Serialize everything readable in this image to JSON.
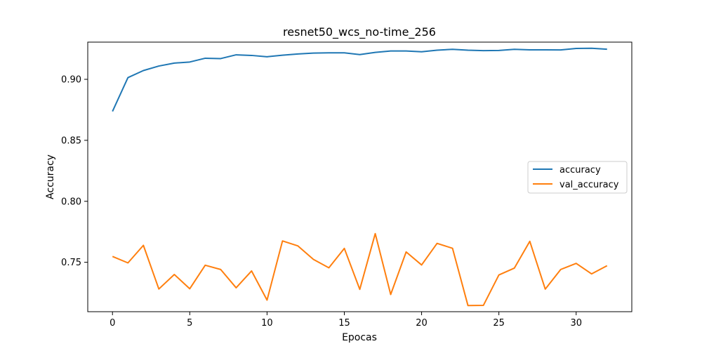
{
  "chart_data": {
    "type": "line",
    "title": "resnet50_wcs_no-time_256",
    "xlabel": "Epocas",
    "ylabel": "Accuracy",
    "xlim": [
      -1.6,
      33.6
    ],
    "ylim": [
      0.7095,
      0.9305
    ],
    "xticks": [
      0,
      5,
      10,
      15,
      20,
      25,
      30
    ],
    "yticks": [
      0.75,
      0.8,
      0.85,
      0.9
    ],
    "ytick_labels": [
      "0.75",
      "0.80",
      "0.85",
      "0.90"
    ],
    "grid": false,
    "legend_position": "center-right",
    "x": [
      0,
      1,
      2,
      3,
      4,
      5,
      6,
      7,
      8,
      9,
      10,
      11,
      12,
      13,
      14,
      15,
      16,
      17,
      18,
      19,
      20,
      21,
      22,
      23,
      24,
      25,
      26,
      27,
      28,
      29,
      30,
      31,
      32
    ],
    "series": [
      {
        "name": "accuracy",
        "color": "#1f77b4",
        "values": [
          0.8737,
          0.9014,
          0.9072,
          0.9109,
          0.9133,
          0.9142,
          0.9173,
          0.917,
          0.9201,
          0.9196,
          0.9185,
          0.9198,
          0.9208,
          0.9215,
          0.9217,
          0.9217,
          0.9203,
          0.9221,
          0.9232,
          0.9232,
          0.9226,
          0.9239,
          0.9246,
          0.9239,
          0.9235,
          0.9237,
          0.9246,
          0.9242,
          0.9242,
          0.9241,
          0.9253,
          0.9255,
          0.9247
        ]
      },
      {
        "name": "val_accuracy",
        "color": "#ff7f0e",
        "values": [
          0.7548,
          0.7495,
          0.7639,
          0.7281,
          0.74,
          0.7283,
          0.7476,
          0.7441,
          0.7291,
          0.7429,
          0.719,
          0.7675,
          0.7634,
          0.7524,
          0.7455,
          0.7614,
          0.7278,
          0.7735,
          0.7236,
          0.7585,
          0.7478,
          0.7655,
          0.7615,
          0.7145,
          0.7147,
          0.7396,
          0.7452,
          0.7672,
          0.728,
          0.7441,
          0.7491,
          0.7405,
          0.7472
        ]
      }
    ]
  }
}
